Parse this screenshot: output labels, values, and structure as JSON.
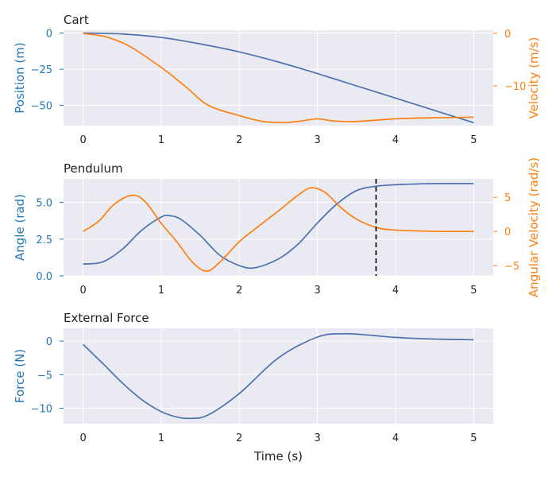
{
  "colors": {
    "blue": "#4c72b0",
    "orange": "#ff7f0e",
    "left_axis_text": "#1f77b4",
    "right_axis_text": "#ff7f0e",
    "panel_bg": "#eaeaf2",
    "marker": "#000000"
  },
  "chart_data": [
    {
      "type": "line",
      "title": "Cart",
      "xlabel": "",
      "ylabel": "Position (m)",
      "y2label": "Velocity (m/s)",
      "xlim": [
        -0.25,
        5.25
      ],
      "ylim": [
        -64,
        2
      ],
      "y2lim": [
        -17.6,
        0.6
      ],
      "x_ticks": [
        "0",
        "1",
        "2",
        "3",
        "4",
        "5"
      ],
      "y_ticks": [
        {
          "v": 0,
          "label": "0"
        },
        {
          "v": -25,
          "label": "−25"
        },
        {
          "v": -50,
          "label": "−50"
        }
      ],
      "y2_ticks": [
        {
          "v": 0,
          "label": "0"
        },
        {
          "v": -10,
          "label": "−10"
        }
      ],
      "grid": true,
      "series": [
        {
          "axis": "left",
          "color": "blue",
          "x": [
            0,
            0.5,
            1,
            1.5,
            2,
            2.5,
            3,
            3.5,
            4,
            4.5,
            5
          ],
          "y": [
            0,
            -0.6,
            -3,
            -7.5,
            -13,
            -20,
            -28,
            -36.5,
            -45,
            -53.5,
            -62
          ]
        },
        {
          "axis": "right",
          "color": "orange",
          "x": [
            0,
            0.3,
            0.6,
            1.0,
            1.3,
            1.6,
            2.0,
            2.3,
            2.6,
            2.8,
            3.0,
            3.2,
            3.5,
            4.0,
            4.5,
            5.0
          ],
          "y": [
            0,
            -0.7,
            -2.5,
            -6.5,
            -10,
            -13.7,
            -15.7,
            -16.8,
            -17.0,
            -16.7,
            -16.3,
            -16.7,
            -16.8,
            -16.3,
            -16.1,
            -16.0
          ]
        }
      ]
    },
    {
      "type": "line",
      "title": "Pendulum",
      "xlabel": "",
      "ylabel": "Angle (rad)",
      "y2label": "Angular Velocity (rad/s)",
      "xlim": [
        -0.25,
        5.25
      ],
      "ylim": [
        0,
        6.6
      ],
      "y2lim": [
        -6.5,
        7.7
      ],
      "x_ticks": [
        "0",
        "1",
        "2",
        "3",
        "4",
        "5"
      ],
      "y_ticks": [
        {
          "v": 0,
          "label": "0.0"
        },
        {
          "v": 2.5,
          "label": "2.5"
        },
        {
          "v": 5,
          "label": "5.0"
        }
      ],
      "y2_ticks": [
        {
          "v": 5,
          "label": "5"
        },
        {
          "v": 0,
          "label": "0"
        },
        {
          "v": -5,
          "label": "−5"
        }
      ],
      "grid": true,
      "vline_x": 3.75,
      "series": [
        {
          "axis": "left",
          "color": "blue",
          "x": [
            0,
            0.25,
            0.5,
            0.75,
            1.0,
            1.1,
            1.25,
            1.5,
            1.75,
            2.0,
            2.2,
            2.5,
            2.75,
            3.0,
            3.25,
            3.5,
            3.75,
            4.0,
            4.25,
            4.5,
            5.0
          ],
          "y": [
            0.8,
            0.95,
            1.8,
            3.1,
            4.0,
            4.1,
            3.85,
            2.75,
            1.4,
            0.7,
            0.55,
            1.15,
            2.15,
            3.6,
            4.9,
            5.8,
            6.1,
            6.2,
            6.25,
            6.28,
            6.28
          ]
        },
        {
          "axis": "right",
          "color": "orange",
          "x": [
            0,
            0.2,
            0.4,
            0.63,
            0.8,
            1.0,
            1.2,
            1.4,
            1.58,
            1.75,
            2.0,
            2.25,
            2.5,
            2.75,
            2.92,
            3.1,
            3.3,
            3.5,
            3.75,
            4.0,
            4.5,
            5.0
          ],
          "y": [
            0,
            1.5,
            4.0,
            5.3,
            4.3,
            1.2,
            -1.5,
            -4.5,
            -5.8,
            -4.5,
            -1.5,
            0.8,
            3.0,
            5.3,
            6.4,
            5.7,
            3.5,
            1.8,
            0.6,
            0.2,
            0.02,
            0
          ]
        }
      ]
    },
    {
      "type": "line",
      "title": "External Force",
      "xlabel": "Time (s)",
      "ylabel": "Force (N)",
      "xlim": [
        -0.25,
        5.25
      ],
      "ylim": [
        -12.3,
        1.9
      ],
      "x_ticks": [
        "0",
        "1",
        "2",
        "3",
        "4",
        "5"
      ],
      "y_ticks": [
        {
          "v": 0,
          "label": "0"
        },
        {
          "v": -5,
          "label": "−5"
        },
        {
          "v": -10,
          "label": "−10"
        }
      ],
      "grid": true,
      "series": [
        {
          "axis": "left",
          "color": "blue",
          "x": [
            0,
            0.25,
            0.5,
            0.75,
            1.0,
            1.2,
            1.37,
            1.6,
            2.0,
            2.5,
            3.0,
            3.35,
            3.7,
            4.0,
            4.5,
            5.0
          ],
          "y": [
            -0.5,
            -3.3,
            -6.2,
            -8.7,
            -10.5,
            -11.3,
            -11.5,
            -11.0,
            -7.8,
            -2.5,
            0.6,
            1.1,
            0.85,
            0.55,
            0.3,
            0.2
          ]
        }
      ]
    }
  ]
}
